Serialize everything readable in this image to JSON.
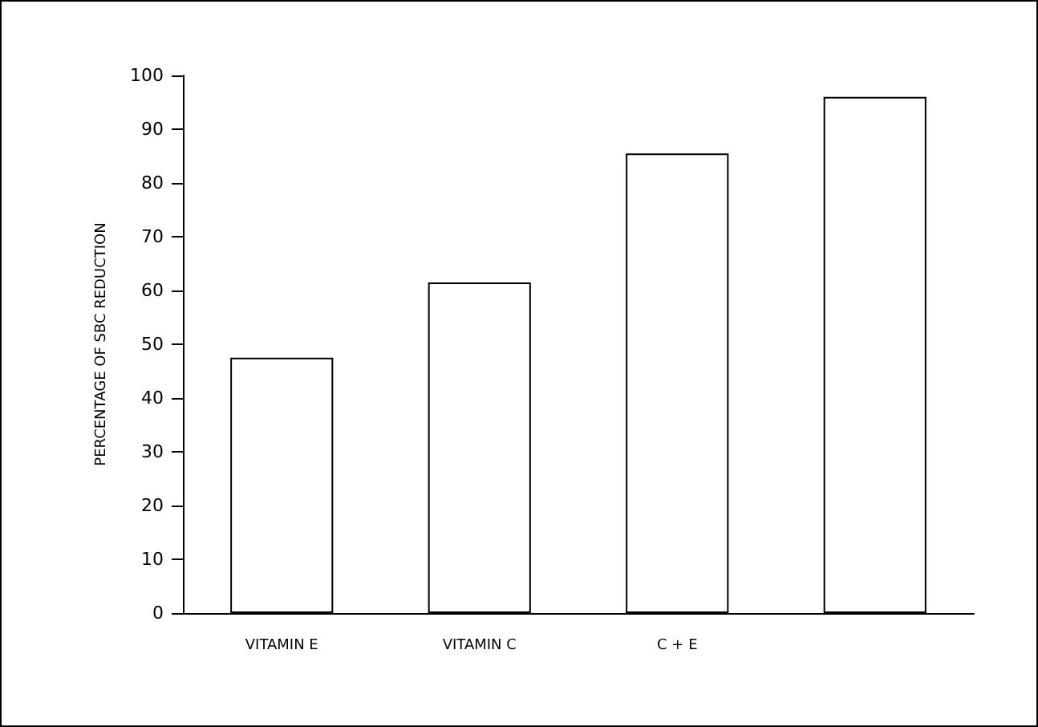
{
  "chart_data": {
    "type": "bar",
    "ylabel": "PERCENTAGE OF SBC REDUCTION",
    "categories": [
      "VITAMIN E",
      "VITAMIN C",
      "C + E",
      null
    ],
    "values": [
      47.5,
      61.5,
      85.5,
      96
    ],
    "color": "#ffffff",
    "ylim": [
      0,
      100
    ],
    "yticks": [
      0,
      10,
      20,
      30,
      40,
      50,
      60,
      70,
      80,
      90,
      100
    ],
    "grid": false
  }
}
